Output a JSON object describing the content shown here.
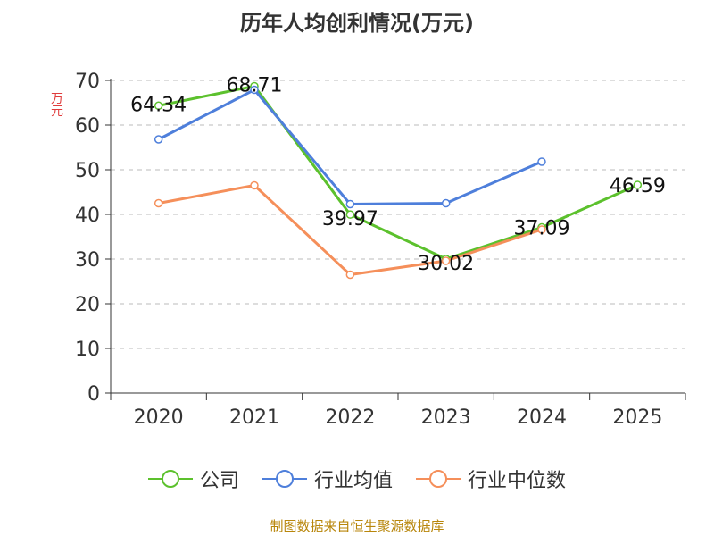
{
  "chart_data": {
    "type": "line",
    "title": "历年人均创利情况(万元)",
    "ylabel": "万元",
    "xlabel": "",
    "categories": [
      "2020",
      "2021",
      "2022",
      "2023",
      "2024",
      "2025"
    ],
    "ylim": [
      0,
      70
    ],
    "yticks": [
      0,
      10,
      20,
      30,
      40,
      50,
      60,
      70
    ],
    "grid": true,
    "legend_position": "bottom",
    "series": [
      {
        "name": "公司",
        "color": "#5cc12d",
        "values": [
          64.34,
          68.71,
          39.97,
          30.02,
          37.09,
          46.59
        ],
        "labels": [
          "64.34",
          "68.71",
          "39.97",
          "30.02",
          "37.09",
          "46.59"
        ]
      },
      {
        "name": "行业均值",
        "color": "#4e7fdb",
        "values": [
          56.8,
          67.9,
          42.3,
          42.5,
          51.8,
          null
        ]
      },
      {
        "name": "行业中位数",
        "color": "#f58f5a",
        "values": [
          42.5,
          46.5,
          26.5,
          29.6,
          36.6,
          null
        ]
      }
    ]
  },
  "source_text": "制图数据来自恒生聚源数据库"
}
